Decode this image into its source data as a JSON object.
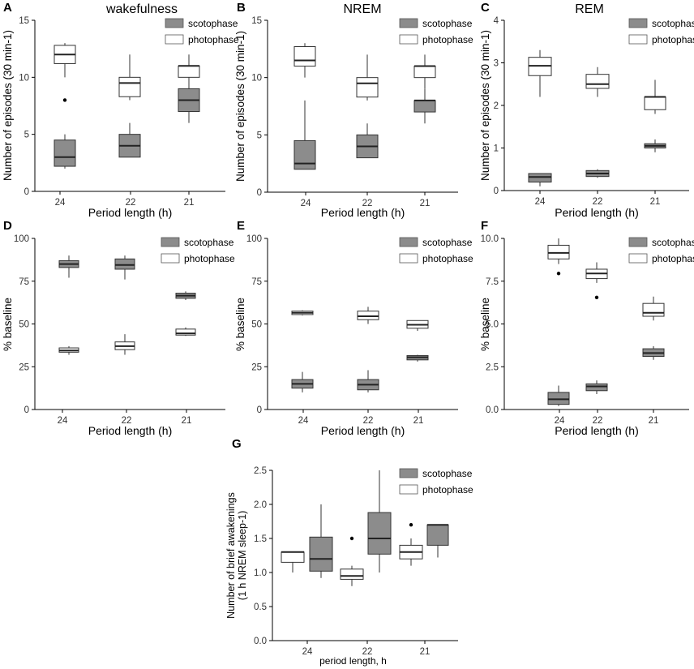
{
  "colors": {
    "scotophase_fill": "#8c8c8c",
    "photophase_fill": "#ffffff",
    "stroke": "#333333",
    "axis": "#000000"
  },
  "chart_data": [
    {
      "panel": "A",
      "type": "boxplot",
      "title": "wakefulness",
      "xlabel": "Period length (h)",
      "ylabel": "Number of episodes (30 min-1)",
      "categories": [
        "24",
        "22",
        "21"
      ],
      "ylim": [
        0,
        15
      ],
      "yticks": [
        0,
        5,
        10,
        15
      ],
      "ytick_labels": [
        "0",
        "5",
        "10",
        "15"
      ],
      "legend": [
        "scotophase",
        "photophase"
      ],
      "boxes": [
        {
          "cat": 0,
          "series": "photophase",
          "min": 10,
          "q1": 11.2,
          "median": 12,
          "q3": 12.8,
          "max": 13,
          "outliers": [
            8
          ]
        },
        {
          "cat": 0,
          "series": "scotophase",
          "min": 2,
          "q1": 2.2,
          "median": 3,
          "q3": 4.5,
          "max": 5,
          "outliers": []
        },
        {
          "cat": 1,
          "series": "photophase",
          "min": 8,
          "q1": 8.3,
          "median": 9.5,
          "q3": 10,
          "max": 12,
          "outliers": []
        },
        {
          "cat": 1,
          "series": "scotophase",
          "min": 3,
          "q1": 3,
          "median": 4,
          "q3": 5,
          "max": 6,
          "outliers": []
        },
        {
          "cat": 2,
          "series": "photophase",
          "min": 9,
          "q1": 10,
          "median": 11,
          "q3": 11,
          "max": 12,
          "outliers": []
        },
        {
          "cat": 2,
          "series": "scotophase",
          "min": 6,
          "q1": 7,
          "median": 8,
          "q3": 9,
          "max": 10,
          "outliers": []
        }
      ]
    },
    {
      "panel": "B",
      "type": "boxplot",
      "title": "NREM",
      "xlabel": "Period length (h)",
      "ylabel": "Number of episodes (30 min-1)",
      "categories": [
        "24",
        "22",
        "21"
      ],
      "ylim": [
        0,
        15
      ],
      "yticks": [
        0,
        5,
        10,
        15
      ],
      "ytick_labels": [
        "0",
        "5",
        "10",
        "15"
      ],
      "legend": [
        "scotophase",
        "photophase"
      ],
      "boxes": [
        {
          "cat": 0,
          "series": "photophase",
          "min": 10,
          "q1": 11,
          "median": 11.5,
          "q3": 12.7,
          "max": 13,
          "outliers": []
        },
        {
          "cat": 0,
          "series": "scotophase",
          "min": 2,
          "q1": 2,
          "median": 2.5,
          "q3": 4.5,
          "max": 8,
          "outliers": []
        },
        {
          "cat": 1,
          "series": "photophase",
          "min": 8,
          "q1": 8.3,
          "median": 9.5,
          "q3": 10,
          "max": 12,
          "outliers": []
        },
        {
          "cat": 1,
          "series": "scotophase",
          "min": 3,
          "q1": 3,
          "median": 4,
          "q3": 5,
          "max": 6,
          "outliers": []
        },
        {
          "cat": 2,
          "series": "photophase",
          "min": 9,
          "q1": 10,
          "median": 11,
          "q3": 11,
          "max": 12,
          "outliers": []
        },
        {
          "cat": 2,
          "series": "scotophase",
          "min": 6,
          "q1": 7,
          "median": 8,
          "q3": 8,
          "max": 9,
          "outliers": []
        }
      ]
    },
    {
      "panel": "C",
      "type": "boxplot",
      "title": "REM",
      "xlabel": "Period length (h)",
      "ylabel": "Number of episodes (30 min-1)",
      "categories": [
        "24",
        "22",
        "21"
      ],
      "ylim": [
        0,
        4
      ],
      "yticks": [
        0,
        1,
        2,
        3,
        4
      ],
      "ytick_labels": [
        "0",
        "1",
        "2",
        "3",
        "4"
      ],
      "legend": [
        "scotophase",
        "photophase"
      ],
      "boxes": [
        {
          "cat": 0,
          "series": "photophase",
          "min": 2.2,
          "q1": 2.7,
          "median": 2.93,
          "q3": 3.13,
          "max": 3.3,
          "outliers": []
        },
        {
          "cat": 0,
          "series": "scotophase",
          "min": 0.1,
          "q1": 0.2,
          "median": 0.32,
          "q3": 0.4,
          "max": 0.4,
          "outliers": []
        },
        {
          "cat": 1,
          "series": "photophase",
          "min": 2.2,
          "q1": 2.4,
          "median": 2.5,
          "q3": 2.73,
          "max": 2.9,
          "outliers": []
        },
        {
          "cat": 1,
          "series": "scotophase",
          "min": 0.3,
          "q1": 0.33,
          "median": 0.4,
          "q3": 0.47,
          "max": 0.5,
          "outliers": []
        },
        {
          "cat": 2,
          "series": "photophase",
          "min": 1.8,
          "q1": 1.9,
          "median": 2.2,
          "q3": 2.2,
          "max": 2.6,
          "outliers": []
        },
        {
          "cat": 2,
          "series": "scotophase",
          "min": 0.9,
          "q1": 1,
          "median": 1.05,
          "q3": 1.1,
          "max": 1.2,
          "outliers": []
        }
      ]
    },
    {
      "panel": "D",
      "type": "boxplot",
      "title": "",
      "xlabel": "Period length (h)",
      "ylabel": "% baseline",
      "categories": [
        "24",
        "22",
        "21"
      ],
      "ylim": [
        0,
        100
      ],
      "yticks": [
        0,
        25,
        50,
        75,
        100
      ],
      "ytick_labels": [
        "0",
        "25",
        "50",
        "75",
        "100"
      ],
      "legend": [
        "scotophase",
        "photophase"
      ],
      "boxes": [
        {
          "cat": 0,
          "series": "scotophase",
          "min": 77,
          "q1": 83,
          "median": 85,
          "q3": 87,
          "max": 90,
          "outliers": []
        },
        {
          "cat": 0,
          "series": "photophase",
          "min": 32,
          "q1": 33.5,
          "median": 34.5,
          "q3": 36,
          "max": 37,
          "outliers": []
        },
        {
          "cat": 1,
          "series": "scotophase",
          "min": 76,
          "q1": 82,
          "median": 84.5,
          "q3": 88,
          "max": 90,
          "outliers": []
        },
        {
          "cat": 1,
          "series": "photophase",
          "min": 32,
          "q1": 35,
          "median": 37,
          "q3": 39.5,
          "max": 44,
          "outliers": []
        },
        {
          "cat": 2,
          "series": "scotophase",
          "min": 64,
          "q1": 65,
          "median": 66.5,
          "q3": 68,
          "max": 69,
          "outliers": []
        },
        {
          "cat": 2,
          "series": "photophase",
          "min": 43,
          "q1": 43.5,
          "median": 44.5,
          "q3": 47,
          "max": 48,
          "outliers": []
        }
      ]
    },
    {
      "panel": "E",
      "type": "boxplot",
      "title": "",
      "xlabel": "Period length (h)",
      "ylabel": "% baseline",
      "categories": [
        "24",
        "22",
        "21"
      ],
      "ylim": [
        0,
        100
      ],
      "yticks": [
        0,
        25,
        50,
        75,
        100
      ],
      "ytick_labels": [
        "0",
        "25",
        "50",
        "75",
        "100"
      ],
      "legend": [
        "scotophase",
        "photophase"
      ],
      "boxes": [
        {
          "cat": 0,
          "series": "photophase",
          "min": 55,
          "q1": 55.5,
          "median": 56.5,
          "q3": 57.5,
          "max": 58,
          "outliers": []
        },
        {
          "cat": 0,
          "series": "scotophase",
          "min": 10,
          "q1": 12.5,
          "median": 15,
          "q3": 17.5,
          "max": 22,
          "outliers": []
        },
        {
          "cat": 1,
          "series": "photophase",
          "min": 50,
          "q1": 52.5,
          "median": 54.5,
          "q3": 57.5,
          "max": 60,
          "outliers": []
        },
        {
          "cat": 1,
          "series": "scotophase",
          "min": 10,
          "q1": 11.5,
          "median": 14.5,
          "q3": 17.5,
          "max": 23,
          "outliers": []
        },
        {
          "cat": 2,
          "series": "photophase",
          "min": 46,
          "q1": 47.5,
          "median": 49.5,
          "q3": 52,
          "max": 52,
          "outliers": []
        },
        {
          "cat": 2,
          "series": "scotophase",
          "min": 28,
          "q1": 29,
          "median": 30.5,
          "q3": 31.5,
          "max": 32,
          "outliers": []
        }
      ]
    },
    {
      "panel": "F",
      "type": "boxplot",
      "title": "",
      "xlabel": "Period length (h)",
      "ylabel": "% baseline",
      "categories": [
        "24",
        "22",
        "21"
      ],
      "ylim": [
        0,
        10
      ],
      "yticks": [
        0,
        2.5,
        5,
        7.5,
        10
      ],
      "ytick_labels": [
        "0.0",
        "2.5",
        "5.0",
        "7.5",
        "10.0"
      ],
      "legend": [
        "scotophase",
        "photophase"
      ],
      "boxes": [
        {
          "cat": 0,
          "series": "photophase",
          "min": 8.5,
          "q1": 8.8,
          "median": 9.15,
          "q3": 9.6,
          "max": 10,
          "outliers": [
            7.95
          ]
        },
        {
          "cat": 0,
          "series": "scotophase",
          "min": 0.2,
          "q1": 0.3,
          "median": 0.6,
          "q3": 1,
          "max": 1.4,
          "outliers": []
        },
        {
          "cat": 1,
          "series": "photophase",
          "min": 7.4,
          "q1": 7.65,
          "median": 7.95,
          "q3": 8.2,
          "max": 8.6,
          "outliers": [
            6.55
          ]
        },
        {
          "cat": 1,
          "series": "scotophase",
          "min": 0.9,
          "q1": 1.1,
          "median": 1.35,
          "q3": 1.5,
          "max": 1.7,
          "outliers": []
        },
        {
          "cat": 2,
          "series": "photophase",
          "min": 5.2,
          "q1": 5.45,
          "median": 5.65,
          "q3": 6.2,
          "max": 6.6,
          "outliers": []
        },
        {
          "cat": 2,
          "series": "scotophase",
          "min": 2.9,
          "q1": 3.1,
          "median": 3.3,
          "q3": 3.55,
          "max": 3.7,
          "outliers": []
        }
      ]
    },
    {
      "panel": "G",
      "type": "boxplot",
      "title": "",
      "xlabel": "period length, h",
      "ylabel": "Number of brief awakenings (1 h NREM sleep-1)",
      "ylabel_lines": [
        "Number of brief awakenings",
        "(1 h NREM sleep-1)"
      ],
      "categories": [
        "24",
        "22",
        "21"
      ],
      "ylim": [
        0,
        2.5
      ],
      "yticks": [
        0,
        0.5,
        1,
        1.5,
        2,
        2.5
      ],
      "ytick_labels": [
        "0.0",
        "0.5",
        "1.0",
        "1.5",
        "2.0",
        "2.5"
      ],
      "legend": [
        "scotophase",
        "photophase"
      ],
      "boxes": [
        {
          "cat": 0,
          "series": "photophase",
          "min": 1,
          "q1": 1.15,
          "median": 1.3,
          "q3": 1.3,
          "max": 1.3,
          "outliers": []
        },
        {
          "cat": 0,
          "series": "scotophase",
          "min": 0.92,
          "q1": 1.02,
          "median": 1.2,
          "q3": 1.52,
          "max": 2,
          "outliers": []
        },
        {
          "cat": 1,
          "series": "photophase",
          "min": 0.8,
          "q1": 0.9,
          "median": 0.95,
          "q3": 1.05,
          "max": 1.1,
          "outliers": [
            1.5
          ]
        },
        {
          "cat": 1,
          "series": "scotophase",
          "min": 1,
          "q1": 1.27,
          "median": 1.5,
          "q3": 1.88,
          "max": 2.5,
          "outliers": []
        },
        {
          "cat": 2,
          "series": "photophase",
          "min": 1.1,
          "q1": 1.2,
          "median": 1.3,
          "q3": 1.4,
          "max": 1.5,
          "outliers": [
            1.7
          ]
        },
        {
          "cat": 2,
          "series": "scotophase",
          "min": 1.22,
          "q1": 1.4,
          "median": 1.7,
          "q3": 1.7,
          "max": 1.7,
          "outliers": []
        }
      ]
    }
  ]
}
